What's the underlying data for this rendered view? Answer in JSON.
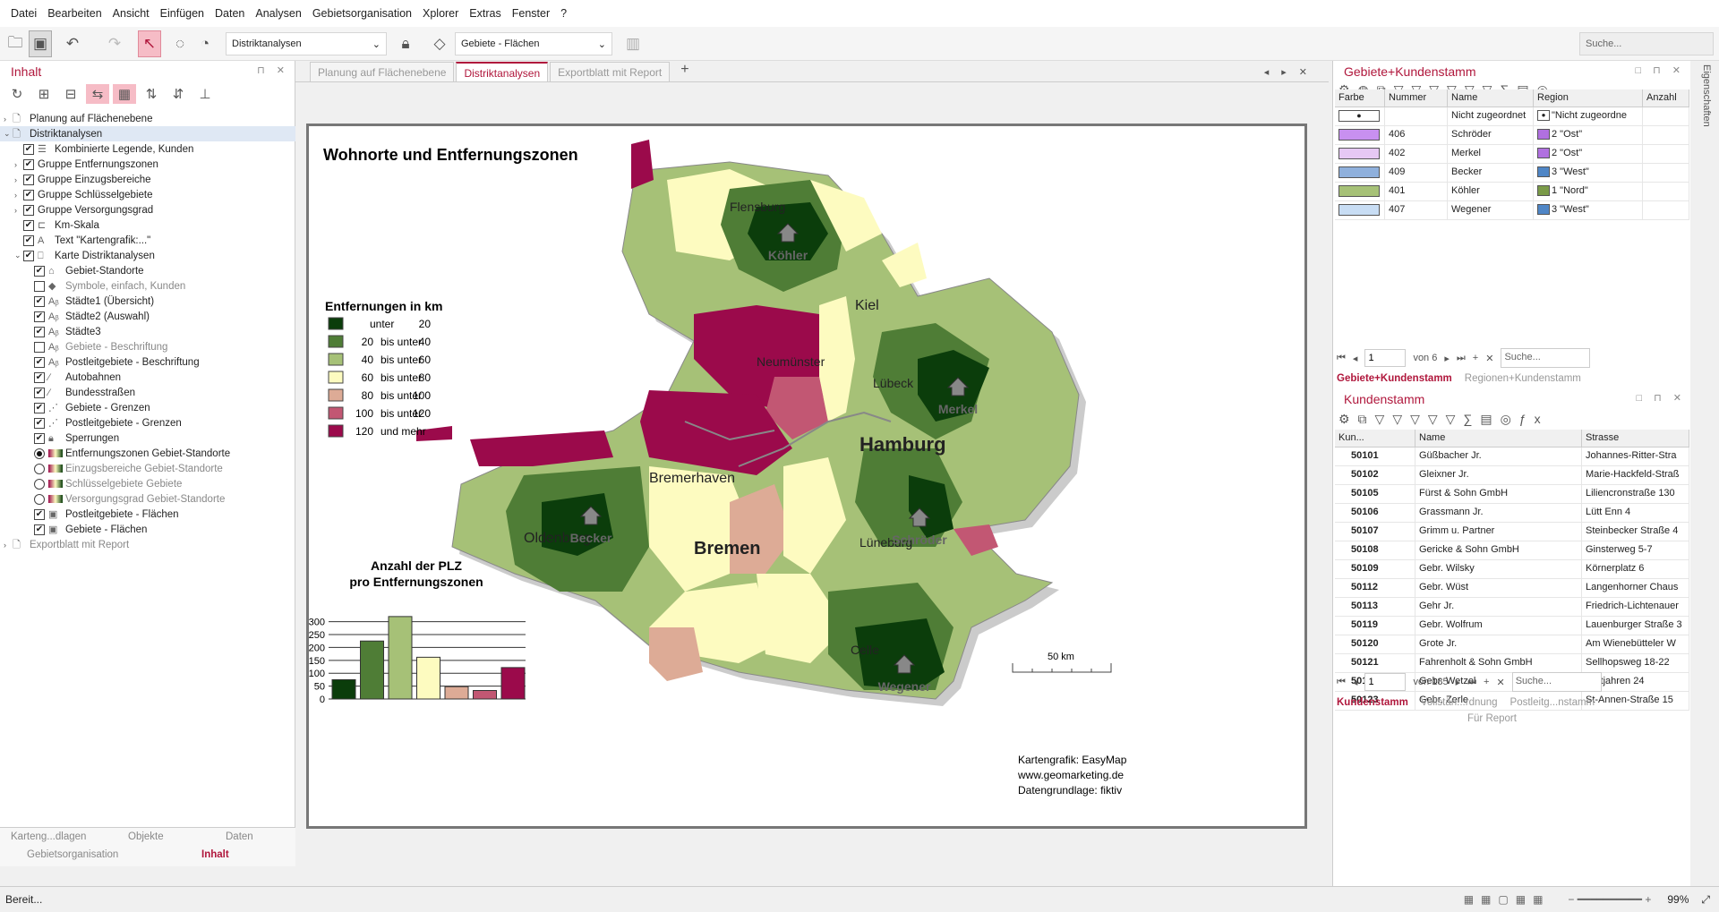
{
  "menu": [
    "Datei",
    "Bearbeiten",
    "Ansicht",
    "Einfügen",
    "Daten",
    "Analysen",
    "Gebietsorganisation",
    "Xplorer",
    "Extras",
    "Fenster",
    "?"
  ],
  "toolbar": {
    "view_select": "Distriktanalysen",
    "layer_select": "Gebiete - Flächen",
    "search_placeholder": "Suche..."
  },
  "left": {
    "title": "Inhalt",
    "tree": [
      {
        "level": 0,
        "exp": "›",
        "check": "none",
        "icon": "page",
        "label": "Planung auf Flächenebene"
      },
      {
        "level": 0,
        "exp": "⌄",
        "check": "none",
        "icon": "page",
        "label": "Distriktanalysen",
        "selected": true
      },
      {
        "level": 1,
        "exp": "",
        "check": "on",
        "icon": "legend",
        "label": "Kombinierte Legende, Kunden"
      },
      {
        "level": 1,
        "exp": "›",
        "check": "on",
        "icon": "",
        "label": "Gruppe Entfernungszonen"
      },
      {
        "level": 1,
        "exp": "›",
        "check": "on",
        "icon": "",
        "label": "Gruppe Einzugsbereiche"
      },
      {
        "level": 1,
        "exp": "›",
        "check": "on",
        "icon": "",
        "label": "Gruppe Schlüsselgebiete"
      },
      {
        "level": 1,
        "exp": "›",
        "check": "on",
        "icon": "",
        "label": "Gruppe Versorgungsgrad"
      },
      {
        "level": 1,
        "exp": "",
        "check": "on",
        "icon": "scale",
        "label": "Km-Skala"
      },
      {
        "level": 1,
        "exp": "",
        "check": "on",
        "icon": "text",
        "label": "Text \"Kartengrafik:...\""
      },
      {
        "level": 1,
        "exp": "⌄",
        "check": "on",
        "icon": "map",
        "label": "Karte Distriktanalysen"
      },
      {
        "level": 2,
        "exp": "",
        "check": "on",
        "icon": "house",
        "label": "Gebiet-Standorte"
      },
      {
        "level": 2,
        "exp": "",
        "check": "off",
        "icon": "symbol",
        "label": "Symbole, einfach, Kunden",
        "dim": true
      },
      {
        "level": 2,
        "exp": "",
        "check": "on",
        "icon": "label",
        "label": "Städte1 (Übersicht)"
      },
      {
        "level": 2,
        "exp": "",
        "check": "on",
        "icon": "label",
        "label": "Städte2 (Auswahl)"
      },
      {
        "level": 2,
        "exp": "",
        "check": "on",
        "icon": "label",
        "label": "Städte3"
      },
      {
        "level": 2,
        "exp": "",
        "check": "off",
        "icon": "label",
        "label": "Gebiete - Beschriftung",
        "dim": true
      },
      {
        "level": 2,
        "exp": "",
        "check": "on",
        "icon": "label",
        "label": "Postleitgebiete - Beschriftung"
      },
      {
        "level": 2,
        "exp": "",
        "check": "on",
        "icon": "line",
        "label": "Autobahnen"
      },
      {
        "level": 2,
        "exp": "",
        "check": "on",
        "icon": "line",
        "label": "Bundesstraßen"
      },
      {
        "level": 2,
        "exp": "",
        "check": "on",
        "icon": "border",
        "label": "Gebiete - Grenzen"
      },
      {
        "level": 2,
        "exp": "",
        "check": "on",
        "icon": "border",
        "label": "Postleitgebiete - Grenzen"
      },
      {
        "level": 2,
        "exp": "",
        "check": "on",
        "icon": "lock",
        "label": "Sperrungen"
      },
      {
        "level": 2,
        "exp": "",
        "check": "radio-on",
        "icon": "grad",
        "label": "Entfernungszonen Gebiet-Standorte"
      },
      {
        "level": 2,
        "exp": "",
        "check": "radio",
        "icon": "grad",
        "label": "Einzugsbereiche Gebiet-Standorte",
        "dim": true
      },
      {
        "level": 2,
        "exp": "",
        "check": "radio",
        "icon": "grad",
        "label": "Schlüsselgebiete Gebiete",
        "dim": true
      },
      {
        "level": 2,
        "exp": "",
        "check": "radio",
        "icon": "grad",
        "label": "Versorgungsgrad Gebiet-Standorte",
        "dim": true
      },
      {
        "level": 2,
        "exp": "",
        "check": "on",
        "icon": "area",
        "label": "Postleitgebiete - Flächen"
      },
      {
        "level": 2,
        "exp": "",
        "check": "on",
        "icon": "area",
        "label": "Gebiete - Flächen"
      },
      {
        "level": 0,
        "exp": "›",
        "check": "none",
        "icon": "page",
        "label": "Exportblatt mit Report",
        "dim": true
      }
    ],
    "bottom_tabs": {
      "t1": "Karteng...dlagen",
      "t2": "Objekte",
      "t3": "Daten",
      "t4": "Gebietsorganisation",
      "t5": "Inhalt"
    }
  },
  "tabs": [
    "Planung auf Flächenebene",
    "Distriktanalysen",
    "Exportblatt mit Report"
  ],
  "map": {
    "title": "Wohnorte und Entfernungszonen",
    "legend_title": "Entfernungen in km",
    "legend": [
      {
        "a": "",
        "b": "unter",
        "c": "20",
        "color": "#0b3d0b"
      },
      {
        "a": "20",
        "b": "bis unter",
        "c": "40",
        "color": "#4f7d36"
      },
      {
        "a": "40",
        "b": "bis unter",
        "c": "60",
        "color": "#a6c177"
      },
      {
        "a": "60",
        "b": "bis unter",
        "c": "80",
        "color": "#fdfbc0"
      },
      {
        "a": "80",
        "b": "bis unter",
        "c": "100",
        "color": "#ddab96"
      },
      {
        "a": "100",
        "b": "bis unter",
        "c": "120",
        "color": "#c25773"
      },
      {
        "a": "120",
        "b": "und mehr",
        "c": "",
        "color": "#9b0a4b"
      }
    ],
    "cities": [
      "Flensburg",
      "Kiel",
      "Neumünster",
      "Lübeck",
      "Hamburg",
      "Bremerhaven",
      "Bremen",
      "Oldenburg",
      "Lüneburg",
      "Celle"
    ],
    "reps": [
      "Köhler",
      "Merkel",
      "Becker",
      "Schröder",
      "Wegener"
    ],
    "scale": "50 km",
    "credit1": "Kartengrafik: EasyMap",
    "credit2": "www.geomarketing.de",
    "credit3": "Datengrundlage: fiktiv"
  },
  "chart_data": {
    "type": "bar",
    "title": "Anzahl der PLZ pro Entfernungszonen",
    "categories": [
      "unter 20",
      "20 bis unter 40",
      "40 bis unter 60",
      "60 bis unter 80",
      "80 bis unter 100",
      "100 bis unter 120",
      "120 und mehr"
    ],
    "values": [
      75,
      225,
      320,
      162,
      48,
      33,
      122
    ],
    "colors": [
      "#0b3d0b",
      "#4f7d36",
      "#a6c177",
      "#fdfbc0",
      "#ddab96",
      "#c25773",
      "#9b0a4b"
    ],
    "yticks": [
      "0",
      "50",
      "100",
      "150",
      "200",
      "250",
      "300"
    ],
    "ylim": [
      0,
      330
    ]
  },
  "right": {
    "panel1": {
      "title": "Gebiete+Kundenstamm",
      "cols": [
        "Farbe",
        "Nummer",
        "Name",
        "Region",
        "Anzahl"
      ],
      "rows": [
        {
          "color": "#ffffff",
          "num": "",
          "name": "Nicht zugeordnet",
          "regcolor": "#ffffff",
          "region": "\"Nicht zugeordne"
        },
        {
          "color": "#c890f0",
          "num": "406",
          "name": "Schröder",
          "regcolor": "#b070e0",
          "region": "2 \"Ost\""
        },
        {
          "color": "#e6c8f4",
          "num": "402",
          "name": "Merkel",
          "regcolor": "#b070e0",
          "region": "2 \"Ost\""
        },
        {
          "color": "#8fb0dc",
          "num": "409",
          "name": "Becker",
          "regcolor": "#4f86c6",
          "region": "3 \"West\""
        },
        {
          "color": "#a6c177",
          "num": "401",
          "name": "Köhler",
          "regcolor": "#7a9a48",
          "region": "1 \"Nord\""
        },
        {
          "color": "#c8ddf4",
          "num": "407",
          "name": "Wegener",
          "regcolor": "#4f86c6",
          "region": "3 \"West\""
        }
      ],
      "page": "1",
      "of": "von 6",
      "search": "Suche...",
      "tab_active": "Gebiete+Kundenstamm",
      "tab_other": "Regionen+Kundenstamm"
    },
    "panel2": {
      "title": "Kundenstamm",
      "cols": [
        "Kun...",
        "Name",
        "Strasse"
      ],
      "rows": [
        [
          "50101",
          "Güßbacher Jr.",
          "Johannes-Ritter-Stra"
        ],
        [
          "50102",
          "Gleixner Jr.",
          "Marie-Hackfeld-Straß"
        ],
        [
          "50105",
          "Fürst & Sohn GmbH",
          "Liliencronstraße 130"
        ],
        [
          "50106",
          "Grassmann Jr.",
          "Lütt Enn 4"
        ],
        [
          "50107",
          "Grimm u. Partner",
          "Steinbecker Straße 4"
        ],
        [
          "50108",
          "Gericke & Sohn GmbH",
          "Ginsterweg 5-7"
        ],
        [
          "50109",
          "Gebr. Wilsky",
          "Körnerplatz 6"
        ],
        [
          "50112",
          "Gebr. Wüst",
          "Langenhorner Chaus"
        ],
        [
          "50113",
          "Gehr Jr.",
          "Friedrich-Lichtenauer"
        ],
        [
          "50119",
          "Gebr. Wolfrum",
          "Lauenburger Straße 3"
        ],
        [
          "50120",
          "Grote Jr.",
          "Am Wienebütteler W"
        ],
        [
          "50121",
          "Fahrenholt & Sohn GmbH",
          "Sellhopsweg 18-22"
        ],
        [
          "50122",
          "Gebr. Wetzel",
          "Kattjahren 24"
        ],
        [
          "50123",
          "Gebr. Zerle",
          "St-Annen-Straße 15"
        ]
      ],
      "page": "1",
      "of": "von 185",
      "search": "Suche...",
      "tab_active": "Kundenstamm",
      "tab2": "Vollstän...rdnung",
      "tab3": "Postleitg...nstamm",
      "tab4": "Für Report"
    }
  },
  "side_tab": "Eigenschaften",
  "status": {
    "text": "Bereit...",
    "zoom": "99%"
  }
}
